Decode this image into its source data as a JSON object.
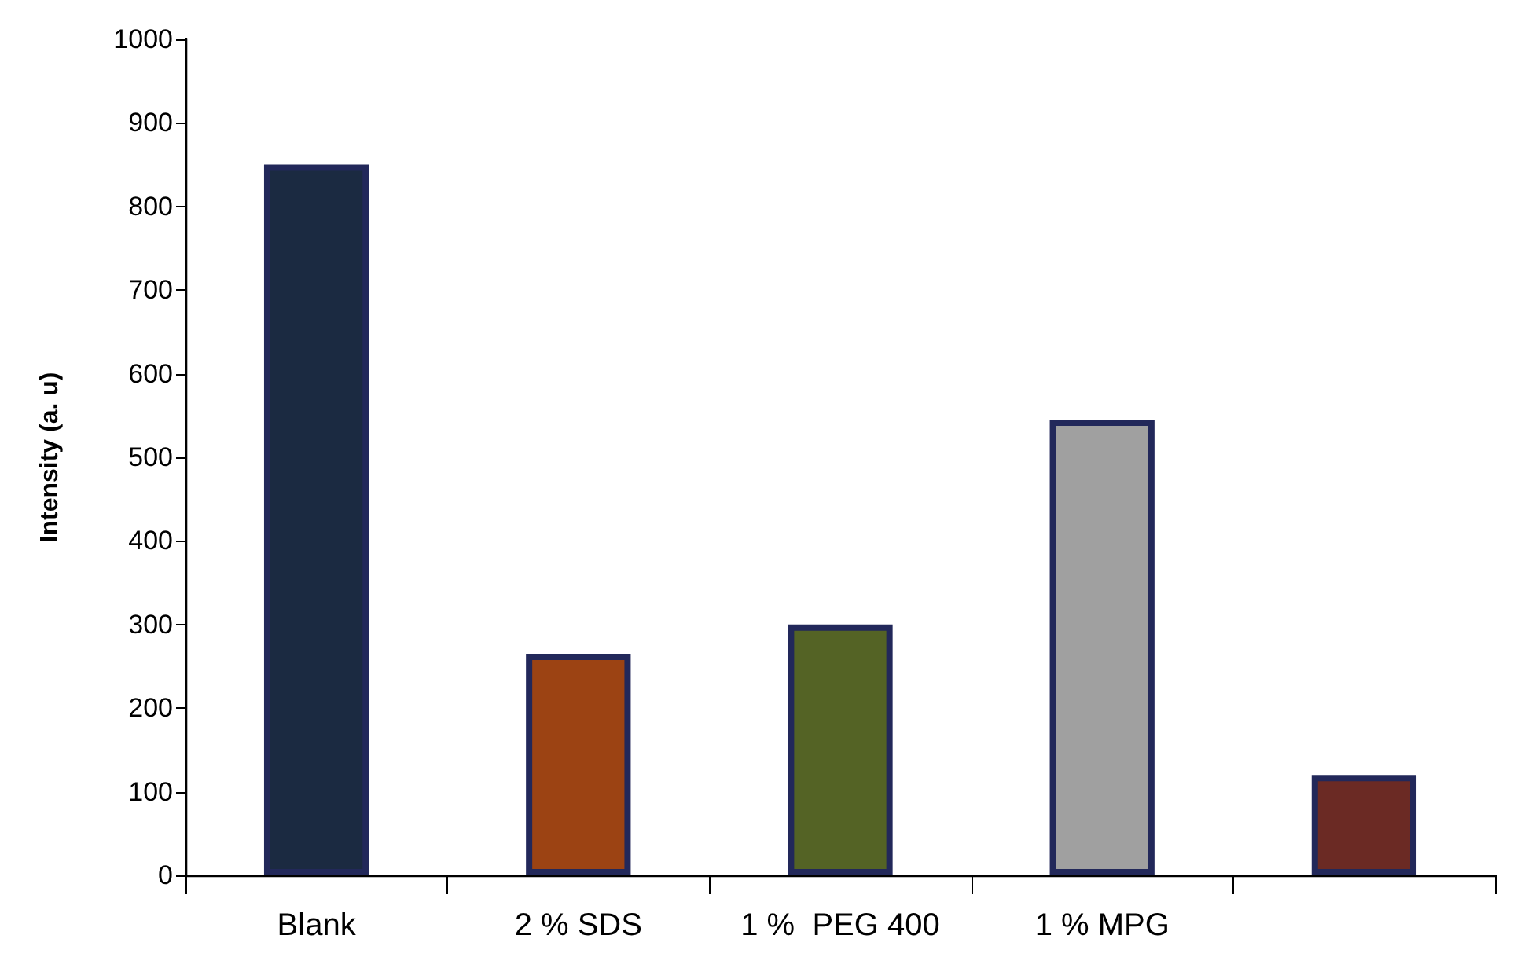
{
  "chart_data": {
    "type": "bar",
    "ylabel": "Intensity (a. u)",
    "categories": [
      "Blank",
      "2 % SDS",
      "1 %  PEG 400",
      "1 % MPG",
      null
    ],
    "values": [
      850,
      265,
      300,
      545,
      120
    ],
    "colors": [
      "#1b2a41",
      "#9c4313",
      "#546325",
      "#a0a0a0",
      "#6b2a24"
    ],
    "ylim": [
      0,
      1000
    ],
    "yticks": [
      0,
      100,
      200,
      300,
      400,
      500,
      600,
      700,
      800,
      900,
      1000
    ],
    "grid": false
  }
}
